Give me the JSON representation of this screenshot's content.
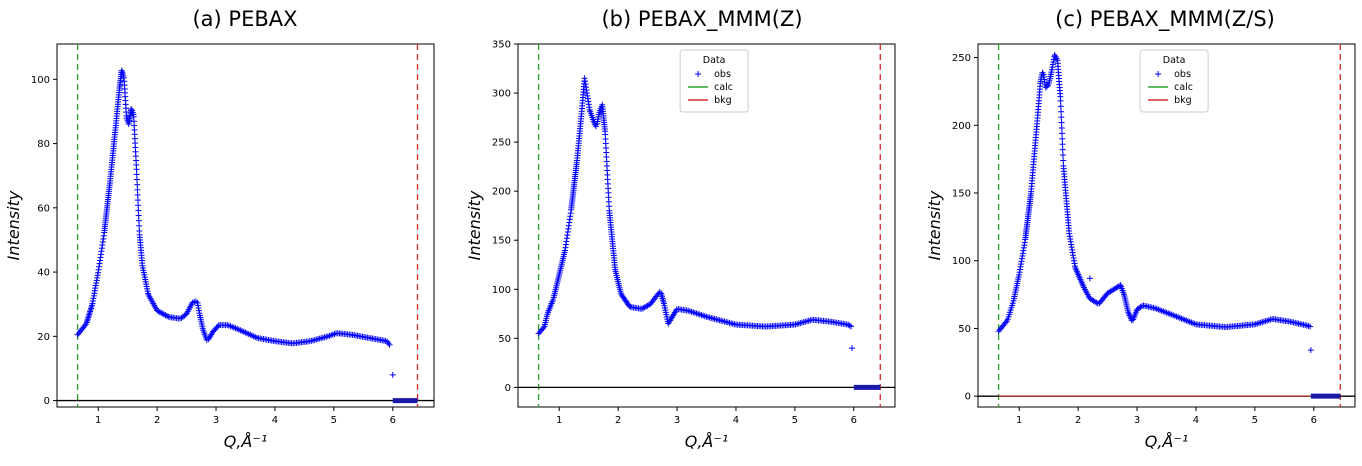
{
  "chart_data": [
    {
      "type": "scatter",
      "title": "(a) PEBAX",
      "xlabel": "Q,Å⁻¹",
      "ylabel": "Intensity",
      "xlim": [
        0.3,
        6.7
      ],
      "ylim": [
        -2,
        111
      ],
      "xticks": [
        1,
        2,
        3,
        4,
        5,
        6
      ],
      "yticks": [
        0,
        20,
        40,
        60,
        80,
        100
      ],
      "vlines": {
        "green": 0.65,
        "red": 6.42
      },
      "colors": {
        "obs": "#0000ff",
        "calc": "#2ca02c",
        "bkg": "#d62728",
        "zero": "#000000"
      },
      "legend": null,
      "obs_keypoints": [
        [
          0.65,
          20.5
        ],
        [
          0.8,
          24
        ],
        [
          0.9,
          30
        ],
        [
          1.0,
          40
        ],
        [
          1.1,
          52
        ],
        [
          1.2,
          68
        ],
        [
          1.3,
          86
        ],
        [
          1.36,
          97
        ],
        [
          1.4,
          103
        ],
        [
          1.44,
          100
        ],
        [
          1.48,
          88
        ],
        [
          1.52,
          86
        ],
        [
          1.56,
          91
        ],
        [
          1.6,
          89
        ],
        [
          1.65,
          72
        ],
        [
          1.7,
          52
        ],
        [
          1.75,
          42
        ],
        [
          1.85,
          33
        ],
        [
          2.0,
          28
        ],
        [
          2.2,
          26
        ],
        [
          2.4,
          25.5
        ],
        [
          2.5,
          27
        ],
        [
          2.6,
          30.5
        ],
        [
          2.68,
          31
        ],
        [
          2.72,
          27
        ],
        [
          2.78,
          22
        ],
        [
          2.85,
          18.5
        ],
        [
          2.95,
          21.5
        ],
        [
          3.05,
          23.5
        ],
        [
          3.2,
          23.5
        ],
        [
          3.4,
          22
        ],
        [
          3.7,
          19.5
        ],
        [
          4.0,
          18.5
        ],
        [
          4.3,
          17.8
        ],
        [
          4.6,
          18.5
        ],
        [
          4.9,
          20
        ],
        [
          5.05,
          21
        ],
        [
          5.3,
          20.5
        ],
        [
          5.6,
          19.5
        ],
        [
          5.9,
          18.5
        ],
        [
          5.96,
          17
        ]
      ],
      "outliers": [
        [
          6.0,
          8
        ]
      ],
      "residual_band": [
        6.0,
        6.42
      ]
    },
    {
      "type": "scatter",
      "title": "(b) PEBAX_MMM(Z)",
      "xlabel": "Q,Å⁻¹",
      "ylabel": "Intensity",
      "xlim": [
        0.3,
        6.7
      ],
      "ylim": [
        -20,
        350
      ],
      "xticks": [
        1,
        2,
        3,
        4,
        5,
        6
      ],
      "yticks": [
        0,
        50,
        100,
        150,
        200,
        250,
        300,
        350
      ],
      "vlines": {
        "green": 0.65,
        "red": 6.45
      },
      "colors": {
        "obs": "#0000ff",
        "calc": "#2ca02c",
        "bkg": "#d62728",
        "zero": "#000000"
      },
      "legend": {
        "title": "Data",
        "items": [
          "obs",
          "calc",
          "bkg"
        ]
      },
      "obs_keypoints": [
        [
          0.65,
          55
        ],
        [
          0.75,
          62
        ],
        [
          0.8,
          75
        ],
        [
          0.9,
          90
        ],
        [
          1.0,
          115
        ],
        [
          1.1,
          140
        ],
        [
          1.2,
          180
        ],
        [
          1.3,
          230
        ],
        [
          1.38,
          280
        ],
        [
          1.43,
          315
        ],
        [
          1.47,
          300
        ],
        [
          1.52,
          282
        ],
        [
          1.58,
          272
        ],
        [
          1.63,
          265
        ],
        [
          1.68,
          280
        ],
        [
          1.73,
          288
        ],
        [
          1.78,
          260
        ],
        [
          1.85,
          180
        ],
        [
          1.95,
          120
        ],
        [
          2.05,
          95
        ],
        [
          2.2,
          82
        ],
        [
          2.4,
          80
        ],
        [
          2.55,
          85
        ],
        [
          2.65,
          93
        ],
        [
          2.72,
          98
        ],
        [
          2.78,
          85
        ],
        [
          2.85,
          65
        ],
        [
          2.92,
          72
        ],
        [
          3.0,
          80
        ],
        [
          3.2,
          78
        ],
        [
          3.5,
          72
        ],
        [
          4.0,
          64
        ],
        [
          4.5,
          62
        ],
        [
          5.0,
          64
        ],
        [
          5.3,
          69
        ],
        [
          5.6,
          67
        ],
        [
          5.9,
          64
        ],
        [
          5.96,
          62
        ]
      ],
      "outliers": [
        [
          5.97,
          40
        ]
      ],
      "residual_band": [
        6.0,
        6.45
      ]
    },
    {
      "type": "scatter",
      "title": "(c) PEBAX_MMM(Z/S)",
      "xlabel": "Q,Å⁻¹",
      "ylabel": "Intensity",
      "xlim": [
        0.3,
        6.7
      ],
      "ylim": [
        -8,
        260
      ],
      "xticks": [
        1,
        2,
        3,
        4,
        5,
        6
      ],
      "yticks": [
        0,
        50,
        100,
        150,
        200,
        250
      ],
      "vlines": {
        "green": 0.65,
        "red": 6.45
      },
      "colors": {
        "obs": "#0000ff",
        "calc": "#2ca02c",
        "bkg": "#d62728",
        "zero": "#000000"
      },
      "legend": {
        "title": "Data",
        "items": [
          "obs",
          "calc",
          "bkg"
        ]
      },
      "obs_keypoints": [
        [
          0.65,
          48
        ],
        [
          0.8,
          56
        ],
        [
          0.9,
          70
        ],
        [
          1.0,
          90
        ],
        [
          1.1,
          115
        ],
        [
          1.2,
          150
        ],
        [
          1.3,
          200
        ],
        [
          1.36,
          232
        ],
        [
          1.4,
          240
        ],
        [
          1.45,
          228
        ],
        [
          1.5,
          230
        ],
        [
          1.55,
          240
        ],
        [
          1.6,
          252
        ],
        [
          1.65,
          248
        ],
        [
          1.7,
          220
        ],
        [
          1.75,
          170
        ],
        [
          1.85,
          120
        ],
        [
          1.95,
          95
        ],
        [
          2.1,
          80
        ],
        [
          2.2,
          72
        ],
        [
          2.35,
          68
        ],
        [
          2.5,
          76
        ],
        [
          2.65,
          80
        ],
        [
          2.72,
          82
        ],
        [
          2.78,
          75
        ],
        [
          2.85,
          62
        ],
        [
          2.92,
          55
        ],
        [
          3.0,
          64
        ],
        [
          3.1,
          67
        ],
        [
          3.3,
          65
        ],
        [
          3.6,
          60
        ],
        [
          4.0,
          53
        ],
        [
          4.5,
          51
        ],
        [
          5.0,
          53
        ],
        [
          5.3,
          57
        ],
        [
          5.6,
          55
        ],
        [
          5.9,
          52
        ],
        [
          5.96,
          51
        ]
      ],
      "outliers": [
        [
          2.2,
          87
        ],
        [
          5.95,
          34
        ]
      ],
      "residual_band": [
        5.95,
        6.45
      ]
    }
  ]
}
